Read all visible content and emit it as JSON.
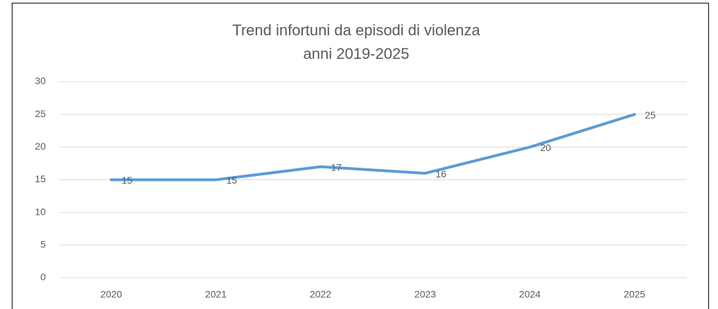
{
  "chart_data": {
    "type": "line",
    "title": [
      "Trend infortuni da episodi di violenza",
      "anni 2019-2025"
    ],
    "categories": [
      "2020",
      "2021",
      "2022",
      "2023",
      "2024",
      "2025"
    ],
    "series": [
      {
        "color": "#5b9bd5",
        "values": [
          15,
          15,
          17,
          16,
          20,
          25
        ]
      }
    ],
    "ylim": [
      0,
      30
    ],
    "yticks": [
      0,
      5,
      10,
      15,
      20,
      25,
      30
    ],
    "grid": true
  }
}
